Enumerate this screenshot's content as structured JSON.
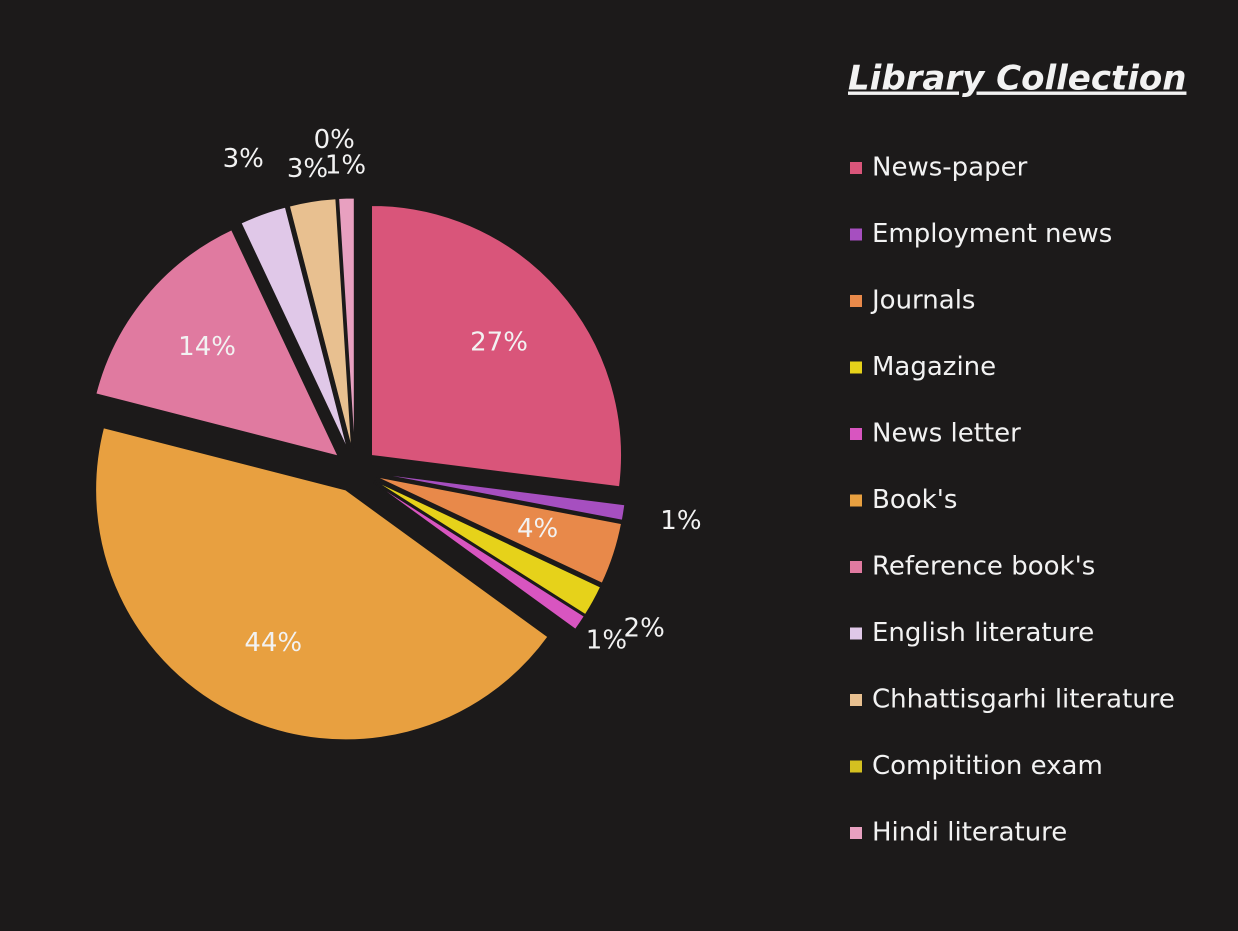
{
  "chart_data": {
    "type": "pie",
    "title": "Library Collection",
    "categories": [
      "News-paper",
      "Employment news",
      "Journals",
      "Magazine",
      "News letter",
      "Book's",
      "Reference book's",
      "English literature",
      "Chhattisgarhi literature",
      "Compitition exam",
      "Hindi literature"
    ],
    "values": [
      27,
      1,
      4,
      2,
      1,
      44,
      14,
      3,
      3,
      0,
      1
    ],
    "value_labels": [
      "27%",
      "1%",
      "4%",
      "2%",
      "1%",
      "44%",
      "14%",
      "3%",
      "3%",
      "0%",
      "1%"
    ],
    "colors": [
      "#d9557a",
      "#a64fc0",
      "#e8894a",
      "#e6d21a",
      "#d855c0",
      "#e8a040",
      "#e07aa0",
      "#e0c8e8",
      "#e8c090",
      "#d4c020",
      "#e8a0c0"
    ]
  }
}
